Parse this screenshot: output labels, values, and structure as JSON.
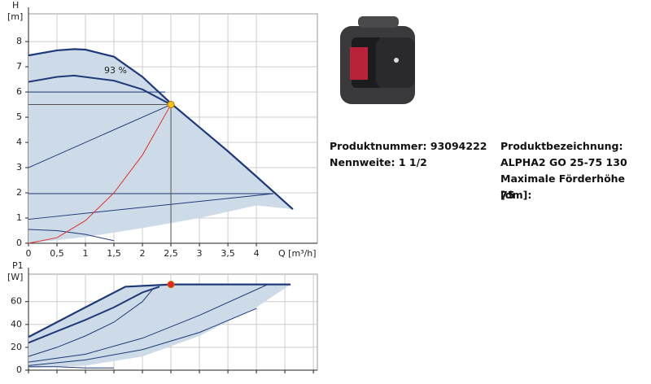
{
  "chart_data": [
    {
      "type": "line",
      "ylabel": "H",
      "yunit": "[m]",
      "xlabel": "Q [m³/h]",
      "annotation": "93 %",
      "xlim": [
        0,
        5.07
      ],
      "ylim": [
        0,
        9.1
      ],
      "xticks": [
        0,
        {
          "value": 0.5,
          "label": "0,5"
        },
        1,
        {
          "value": 1.5,
          "label": "1,5"
        },
        2,
        {
          "value": 2.5,
          "label": "2,5"
        },
        3,
        {
          "value": 3.5,
          "label": "3,5"
        },
        4
      ],
      "yticks": [
        0,
        1,
        2,
        3,
        4,
        5,
        6,
        7,
        8
      ],
      "grid": true,
      "xtick_labels": true,
      "series": [
        {
          "style": "area",
          "color": "#cddbe8",
          "x": [
            0,
            0.5,
            0.8,
            1,
            1.5,
            2,
            2.5,
            3,
            3.5,
            4,
            4.64,
            4,
            3,
            2,
            1,
            0
          ],
          "values": [
            7.45,
            7.65,
            7.7,
            7.68,
            7.4,
            6.6,
            5.55,
            4.6,
            3.65,
            2.65,
            1.35,
            1.5,
            1.0,
            0.6,
            0.25,
            0
          ]
        },
        {
          "style": "line",
          "color": "#1f3a78",
          "width": 2.2,
          "x": [
            0,
            0.5,
            0.8,
            1,
            1.5,
            2,
            2.5,
            3,
            3.5,
            4,
            4.64
          ],
          "values": [
            7.45,
            7.65,
            7.7,
            7.68,
            7.4,
            6.6,
            5.55,
            4.6,
            3.65,
            2.65,
            1.35
          ]
        },
        {
          "style": "line",
          "color": "#1f3a78",
          "width": 2,
          "x": [
            0,
            0.5,
            0.8,
            1.5,
            2,
            2.5
          ],
          "values": [
            6.4,
            6.6,
            6.65,
            6.45,
            6.1,
            5.5
          ]
        },
        {
          "style": "line",
          "color": "#1f3a78",
          "width": 1,
          "x": [
            0,
            2.5
          ],
          "values": [
            3.0,
            5.5
          ]
        },
        {
          "style": "line",
          "color": "#1f3a78",
          "width": 1,
          "x": [
            0,
            2.4
          ],
          "values": [
            6.0,
            6.0
          ]
        },
        {
          "style": "line",
          "color": "#1f3a78",
          "width": 1,
          "x": [
            0,
            4.3
          ],
          "values": [
            1.97,
            1.97
          ]
        },
        {
          "style": "line",
          "color": "#1f3a78",
          "width": 1,
          "x": [
            0,
            4.3
          ],
          "values": [
            0.95,
            1.97
          ]
        },
        {
          "style": "line",
          "color": "#1f3a78",
          "width": 1,
          "x": [
            0,
            0.5,
            1,
            1.5
          ],
          "values": [
            0.55,
            0.5,
            0.35,
            0.1
          ]
        },
        {
          "style": "line",
          "color": "#e0302a",
          "width": 1,
          "x": [
            0,
            0.5,
            1,
            1.5,
            2,
            2.5
          ],
          "values": [
            0,
            0.22,
            0.9,
            2.0,
            3.5,
            5.5
          ]
        },
        {
          "style": "line",
          "color": "#555555",
          "width": 1,
          "x": [
            2.5,
            2.5
          ],
          "values": [
            0,
            5.5
          ]
        },
        {
          "style": "line",
          "color": "#555555",
          "width": 1,
          "x": [
            0,
            2.5
          ],
          "values": [
            5.5,
            5.5
          ]
        },
        {
          "style": "point",
          "color": "#f5c518",
          "x": [
            2.5
          ],
          "values": [
            5.5
          ]
        }
      ]
    },
    {
      "type": "line",
      "ylabel": "P1",
      "yunit": "[W]",
      "xlim": [
        0,
        5.07
      ],
      "ylim": [
        0,
        84
      ],
      "xticks": [
        0,
        0.5,
        1,
        1.5,
        2,
        2.5,
        3,
        3.5,
        4,
        4.5,
        5
      ],
      "yticks": [
        0,
        20,
        40,
        60
      ],
      "grid": true,
      "xtick_labels": false,
      "series": [
        {
          "style": "area",
          "color": "#cddbe8",
          "x": [
            0,
            0.5,
            1,
            1.7,
            2.5,
            4.6,
            4,
            3,
            2,
            1,
            0
          ],
          "values": [
            29,
            42,
            55,
            73,
            75,
            75,
            55,
            30,
            12,
            4,
            2
          ]
        },
        {
          "style": "line",
          "color": "#1f3a78",
          "width": 2.2,
          "x": [
            0,
            0.5,
            1,
            1.7,
            2.5,
            4.6
          ],
          "values": [
            29,
            42,
            55,
            73,
            75,
            75
          ]
        },
        {
          "style": "line",
          "color": "#1f3a78",
          "width": 2,
          "x": [
            0,
            0.5,
            1,
            1.5,
            2,
            2.3
          ],
          "values": [
            24,
            34,
            44,
            55,
            68,
            73
          ]
        },
        {
          "style": "line",
          "color": "#1f3a78",
          "width": 1,
          "x": [
            0,
            0.5,
            1,
            1.5,
            2,
            2.2
          ],
          "values": [
            12,
            20,
            30,
            42,
            60,
            72
          ]
        },
        {
          "style": "line",
          "color": "#1f3a78",
          "width": 1,
          "x": [
            0,
            1,
            2,
            3,
            4.2
          ],
          "values": [
            7,
            14,
            28,
            48,
            75
          ]
        },
        {
          "style": "line",
          "color": "#1f3a78",
          "width": 1,
          "x": [
            0,
            1,
            2,
            3,
            4
          ],
          "values": [
            4,
            9,
            18,
            33,
            54
          ]
        },
        {
          "style": "line",
          "color": "#1f3a78",
          "width": 1,
          "x": [
            0,
            0.5,
            1,
            1.5
          ],
          "values": [
            3,
            3,
            2,
            2
          ]
        },
        {
          "style": "point",
          "color": "#e8241c",
          "x": [
            2.5
          ],
          "values": [
            75
          ]
        }
      ]
    }
  ],
  "product": {
    "number": "Produktnummer: 93094222",
    "size": "Nennweite: 1 1/2",
    "name_label": "Produktbezeichnung:",
    "name": "ALPHA2 GO 25-75 130",
    "head_label": "Maximale Förderhöhe [dm]:",
    "head": "75"
  }
}
